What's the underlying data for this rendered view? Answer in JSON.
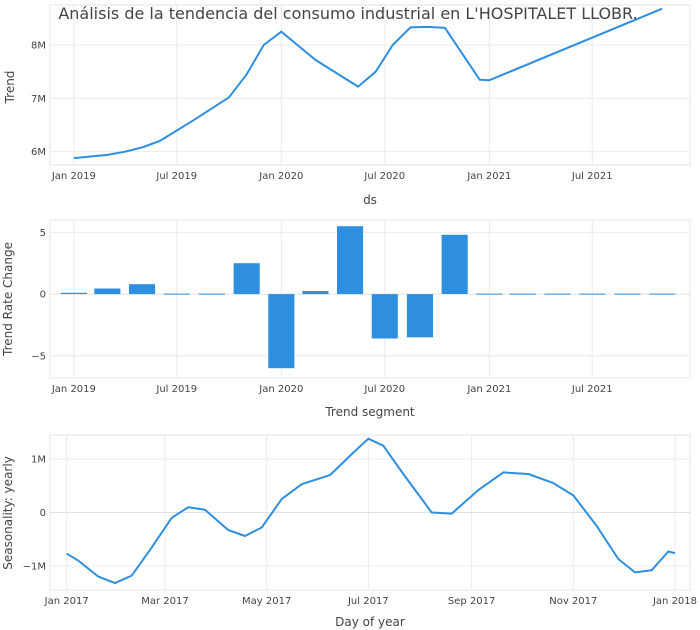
{
  "chart_data": [
    {
      "type": "line",
      "title": "Análisis de la tendencia del consumo industrial en L'HOSPITALET LLOBR.",
      "xlabel": "ds",
      "ylabel": "Trend",
      "x_range": [
        "2018-11-20",
        "2021-12-20"
      ],
      "x_ticks": [
        {
          "date": "2019-01-01",
          "label": "Jan 2019"
        },
        {
          "date": "2019-07-01",
          "label": "Jul 2019"
        },
        {
          "date": "2020-01-01",
          "label": "Jan 2020"
        },
        {
          "date": "2020-07-01",
          "label": "Jul 2020"
        },
        {
          "date": "2021-01-01",
          "label": "Jan 2021"
        },
        {
          "date": "2021-07-01",
          "label": "Jul 2021"
        }
      ],
      "ylim": [
        5.75,
        8.75
      ],
      "y_ticks": [
        {
          "value": 6,
          "label": "6M"
        },
        {
          "value": 7,
          "label": "7M"
        },
        {
          "value": 8,
          "label": "8M"
        }
      ],
      "color": "#2e8fe0",
      "series": [
        {
          "x": [
            "2019-01-01",
            "2019-03-01",
            "2019-04-01",
            "2019-05-01",
            "2019-06-01",
            "2019-08-01",
            "2019-10-01",
            "2019-11-01",
            "2019-12-01",
            "2020-01-01",
            "2020-03-01",
            "2020-05-15",
            "2020-06-15",
            "2020-07-15",
            "2020-08-15",
            "2020-09-15",
            "2020-10-15",
            "2020-12-15",
            "2021-01-01",
            "2021-11-01"
          ],
          "values": [
            5.88,
            5.94,
            6.0,
            6.08,
            6.2,
            6.6,
            7.02,
            7.45,
            8.0,
            8.25,
            7.72,
            7.22,
            7.5,
            8.0,
            8.33,
            8.34,
            8.32,
            7.35,
            7.34,
            8.68
          ]
        }
      ]
    },
    {
      "type": "bar",
      "xlabel": "Trend segment",
      "ylabel": "Trend Rate Change",
      "x_range": [
        "2018-11-20",
        "2021-12-20"
      ],
      "x_ticks": [
        {
          "date": "2019-01-01",
          "label": "Jan 2019"
        },
        {
          "date": "2019-07-01",
          "label": "Jul 2019"
        },
        {
          "date": "2020-01-01",
          "label": "Jan 2020"
        },
        {
          "date": "2020-07-01",
          "label": "Jul 2020"
        },
        {
          "date": "2021-01-01",
          "label": "Jan 2021"
        },
        {
          "date": "2021-07-01",
          "label": "Jul 2021"
        }
      ],
      "ylim": [
        -6.8,
        6.0
      ],
      "y_ticks": [
        {
          "value": -5,
          "label": "−5"
        },
        {
          "value": 0,
          "label": "0"
        },
        {
          "value": 5,
          "label": "5"
        }
      ],
      "color": "#2e8fe0",
      "bar_width_days": 46,
      "series": [
        {
          "x": [
            "2019-01-01",
            "2019-03-01",
            "2019-05-01",
            "2019-07-01",
            "2019-09-01",
            "2019-11-01",
            "2020-01-01",
            "2020-03-01",
            "2020-05-01",
            "2020-07-01",
            "2020-09-01",
            "2020-11-01",
            "2021-01-01",
            "2021-03-01",
            "2021-05-01",
            "2021-07-01",
            "2021-09-01",
            "2021-11-01"
          ],
          "values": [
            0.1,
            0.45,
            0.8,
            0,
            0,
            2.5,
            -6.0,
            0.25,
            5.5,
            -3.6,
            -3.5,
            4.8,
            0,
            0,
            0,
            0,
            0,
            0
          ]
        }
      ]
    },
    {
      "type": "line",
      "xlabel": "Day of year",
      "ylabel": "Seasonality: yearly",
      "x_range": [
        "2016-12-22",
        "2018-01-10"
      ],
      "x_ticks": [
        {
          "date": "2017-01-01",
          "label": "Jan 2017"
        },
        {
          "date": "2017-03-01",
          "label": "Mar 2017"
        },
        {
          "date": "2017-05-01",
          "label": "May 2017"
        },
        {
          "date": "2017-07-01",
          "label": "Jul 2017"
        },
        {
          "date": "2017-09-01",
          "label": "Sep 2017"
        },
        {
          "date": "2017-11-01",
          "label": "Nov 2017"
        },
        {
          "date": "2018-01-01",
          "label": "Jan 2018"
        }
      ],
      "ylim": [
        -1.45,
        1.45
      ],
      "y_ticks": [
        {
          "value": -1,
          "label": "−1M"
        },
        {
          "value": 0,
          "label": "0"
        },
        {
          "value": 1,
          "label": "1M"
        }
      ],
      "color": "#2e8fe0",
      "series": [
        {
          "x": [
            "2017-01-01",
            "2017-01-08",
            "2017-01-20",
            "2017-01-30",
            "2017-02-09",
            "2017-02-20",
            "2017-03-05",
            "2017-03-15",
            "2017-03-25",
            "2017-04-08",
            "2017-04-18",
            "2017-04-28",
            "2017-05-10",
            "2017-05-22",
            "2017-06-08",
            "2017-06-22",
            "2017-07-01",
            "2017-07-10",
            "2017-07-22",
            "2017-08-08",
            "2017-08-20",
            "2017-09-05",
            "2017-09-20",
            "2017-10-05",
            "2017-10-20",
            "2017-11-01",
            "2017-11-15",
            "2017-11-28",
            "2017-12-08",
            "2017-12-18",
            "2017-12-28",
            "2018-01-01"
          ],
          "values": [
            -0.77,
            -0.9,
            -1.2,
            -1.32,
            -1.18,
            -0.7,
            -0.1,
            0.1,
            0.05,
            -0.33,
            -0.44,
            -0.28,
            0.25,
            0.53,
            0.7,
            1.12,
            1.38,
            1.25,
            0.72,
            0.0,
            -0.02,
            0.42,
            0.75,
            0.72,
            0.55,
            0.32,
            -0.25,
            -0.87,
            -1.12,
            -1.08,
            -0.73,
            -0.76
          ]
        }
      ]
    }
  ]
}
